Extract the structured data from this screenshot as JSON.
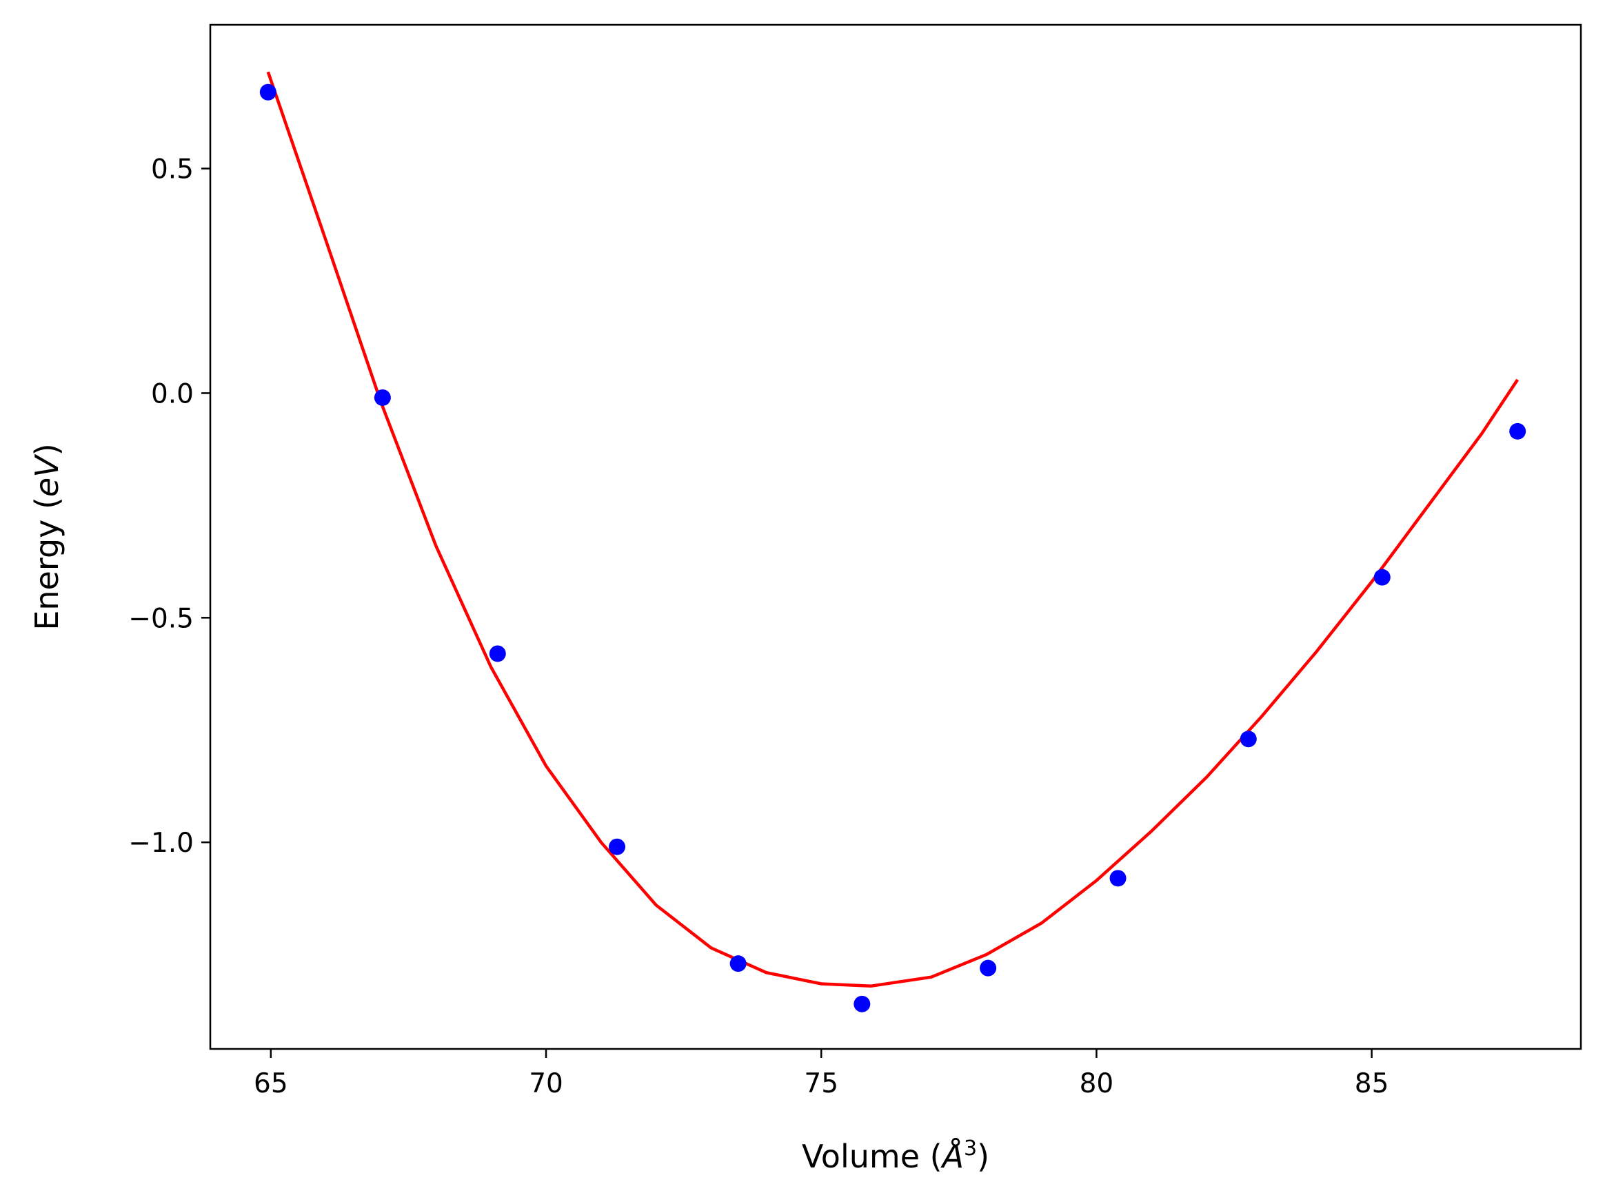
{
  "chart_data": {
    "type": "scatter",
    "title": "",
    "xlabel": {
      "prefix": "Volume (",
      "symbol": "Å",
      "power": "3",
      "suffix": ")"
    },
    "ylabel": {
      "prefix": "Energy (",
      "symbol": "eV",
      "suffix": ")"
    },
    "xlim": [
      63.9,
      88.8
    ],
    "ylim": [
      -1.46,
      0.82
    ],
    "x_ticks": [
      65,
      70,
      75,
      80,
      85
    ],
    "x_tick_labels": [
      "65",
      "70",
      "75",
      "80",
      "85"
    ],
    "y_ticks": [
      0.5,
      0.0,
      -0.5,
      -1.0
    ],
    "y_tick_labels": [
      "0.5",
      "0.0",
      "−0.5",
      "−1.0"
    ],
    "grid": false,
    "legend": "none",
    "series": [
      {
        "kind": "points",
        "color": "#0000ff",
        "x": [
          64.95,
          67.03,
          69.12,
          71.29,
          73.49,
          75.74,
          78.03,
          80.39,
          82.76,
          85.19,
          87.65
        ],
        "y": [
          0.67,
          -0.01,
          -0.58,
          -1.01,
          -1.27,
          -1.36,
          -1.28,
          -1.08,
          -0.77,
          -0.41,
          -0.085
        ]
      },
      {
        "kind": "fit-curve",
        "color": "#ff0000",
        "x": [
          64.95,
          66.0,
          67.0,
          68.0,
          69.0,
          70.0,
          71.0,
          72.0,
          73.0,
          74.0,
          75.0,
          75.9,
          77.0,
          78.0,
          79.0,
          80.0,
          81.0,
          82.0,
          83.0,
          84.0,
          85.0,
          86.0,
          87.0,
          87.65
        ],
        "y": [
          0.715,
          0.34,
          -0.02,
          -0.34,
          -0.61,
          -0.83,
          -1.0,
          -1.14,
          -1.235,
          -1.29,
          -1.315,
          -1.32,
          -1.3,
          -1.25,
          -1.18,
          -1.085,
          -0.975,
          -0.855,
          -0.72,
          -0.575,
          -0.42,
          -0.255,
          -0.09,
          0.03
        ]
      }
    ]
  }
}
